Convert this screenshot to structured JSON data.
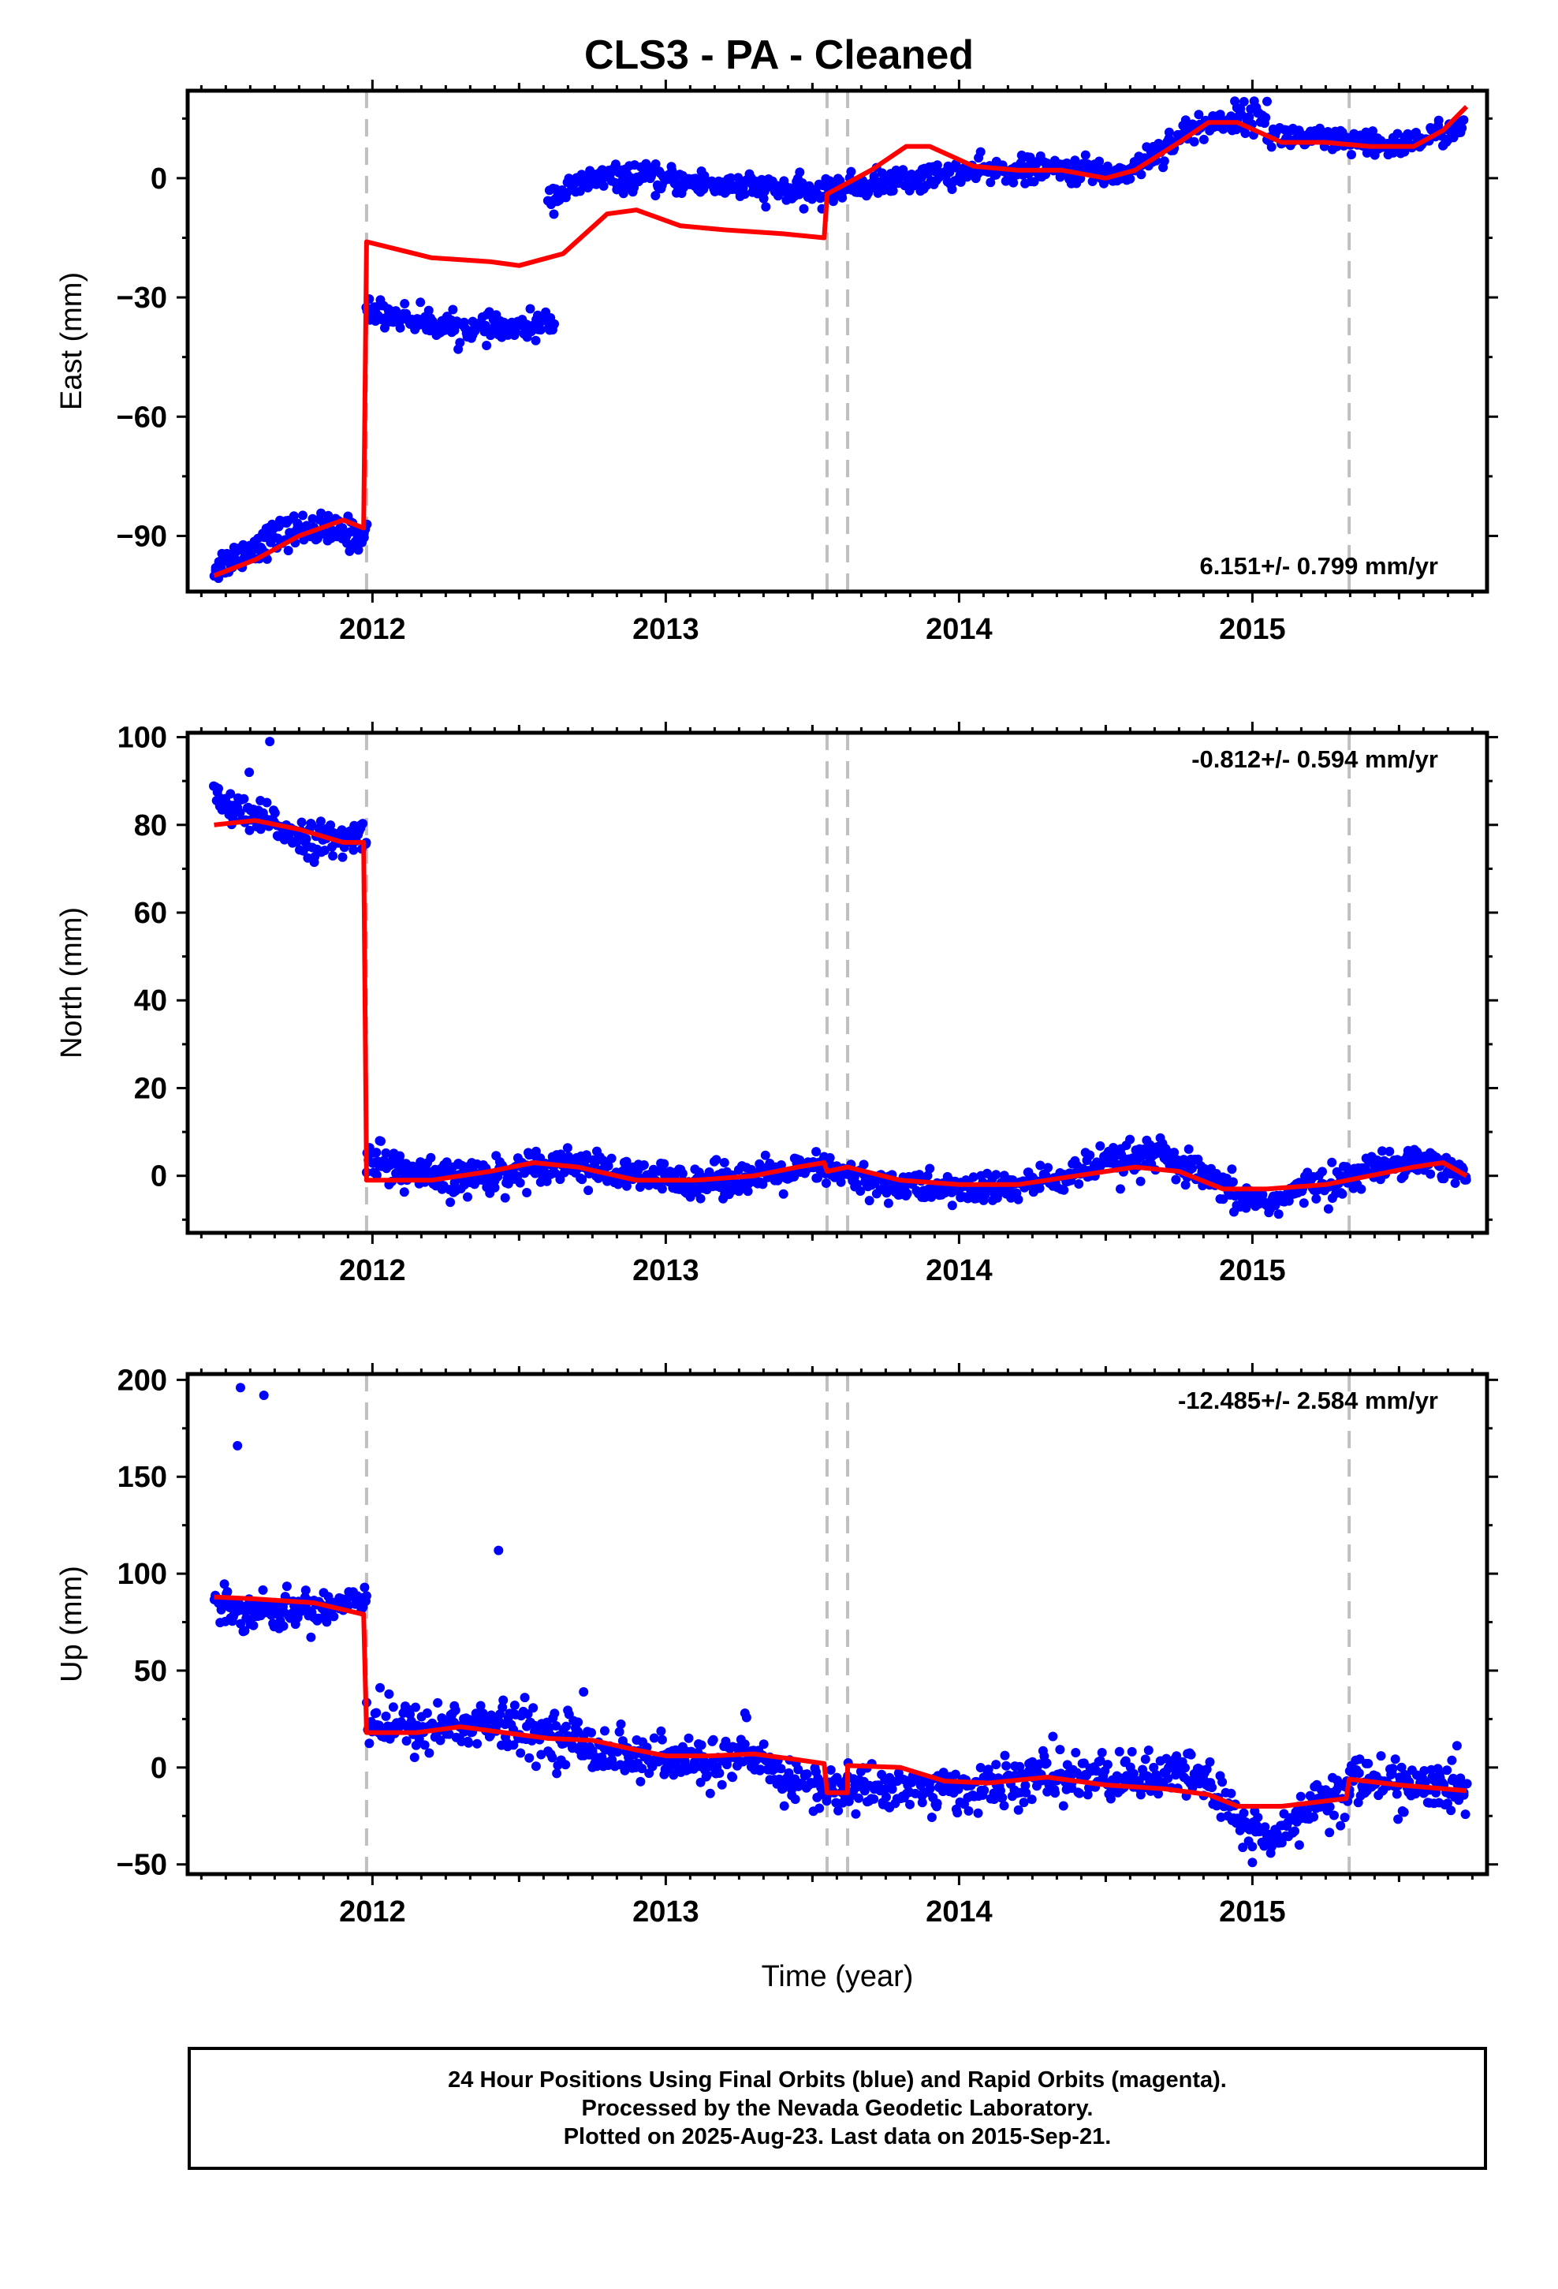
{
  "title": "CLS3  - PA - Cleaned",
  "colors": {
    "points": "#0000ff",
    "model": "#ff0000",
    "event_lines": "#c0c0c0",
    "axes": "#000000"
  },
  "footer": {
    "line1": "24 Hour Positions Using Final Orbits (blue) and Rapid Orbits (magenta).",
    "line2": "Processed by the Nevada Geodetic Laboratory.",
    "line3": "Plotted on 2025-Aug-23. Last data on 2015-Sep-21."
  },
  "chart_data": [
    {
      "type": "scatter",
      "ylabel": "East (mm)",
      "xlabel": "",
      "rate_label": "6.151+/- 0.799 mm/yr",
      "rate_position": "bottom-right",
      "xlim": [
        2011.37,
        2015.8
      ],
      "ylim": [
        -104,
        22
      ],
      "x_ticks": [
        2012,
        2013,
        2014,
        2015
      ],
      "y_ticks": [
        0,
        -30,
        -60,
        -90
      ],
      "event_lines": [
        2011.98,
        2013.55,
        2013.62,
        2015.33
      ],
      "series": [
        {
          "kind": "points",
          "segments": [
            {
              "x0": 2011.46,
              "x1": 2011.98,
              "y": [
                -98,
                -94,
                -90,
                -88,
                -89,
                -90
              ],
              "noise": 2.0,
              "n": 150
            },
            {
              "x0": 2011.98,
              "x1": 2012.62,
              "y": [
                -33,
                -35,
                -37,
                -38,
                -38,
                -36
              ],
              "noise": 1.6,
              "n": 170
            },
            {
              "x0": 2012.6,
              "x1": 2013.55,
              "y": [
                -5,
                0,
                0,
                -1,
                -2,
                -3,
                -4
              ],
              "noise": 1.6,
              "n": 260
            },
            {
              "x0": 2013.55,
              "x1": 2014.58,
              "y": [
                -3,
                -1,
                1,
                2,
                2,
                1
              ],
              "noise": 1.6,
              "n": 270
            },
            {
              "x0": 2014.58,
              "x1": 2015.05,
              "y": [
                2,
                8,
                13,
                15,
                16
              ],
              "noise": 1.8,
              "n": 120
            },
            {
              "x0": 2015.05,
              "x1": 2015.72,
              "y": [
                11,
                10,
                9,
                8,
                10,
                13
              ],
              "noise": 1.6,
              "n": 170
            }
          ],
          "outliers": []
        },
        {
          "kind": "model",
          "points": [
            [
              2011.46,
              -100
            ],
            [
              2011.6,
              -96
            ],
            [
              2011.75,
              -90
            ],
            [
              2011.9,
              -86
            ],
            [
              2011.97,
              -88
            ],
            [
              2011.98,
              -16
            ],
            [
              2012.2,
              -20
            ],
            [
              2012.4,
              -21
            ],
            [
              2012.5,
              -22
            ],
            [
              2012.65,
              -19
            ],
            [
              2012.8,
              -9
            ],
            [
              2012.9,
              -8
            ],
            [
              2013.05,
              -12
            ],
            [
              2013.2,
              -13
            ],
            [
              2013.4,
              -14
            ],
            [
              2013.54,
              -15
            ],
            [
              2013.55,
              -4
            ],
            [
              2013.7,
              2
            ],
            [
              2013.82,
              8
            ],
            [
              2013.9,
              8
            ],
            [
              2014.05,
              3
            ],
            [
              2014.2,
              2
            ],
            [
              2014.35,
              2
            ],
            [
              2014.5,
              0
            ],
            [
              2014.6,
              2
            ],
            [
              2014.75,
              9
            ],
            [
              2014.85,
              14
            ],
            [
              2014.95,
              14
            ],
            [
              2015.1,
              9
            ],
            [
              2015.25,
              9
            ],
            [
              2015.4,
              8
            ],
            [
              2015.55,
              8
            ],
            [
              2015.65,
              12
            ],
            [
              2015.73,
              18
            ]
          ]
        }
      ]
    },
    {
      "type": "scatter",
      "ylabel": "North (mm)",
      "xlabel": "",
      "rate_label": "-0.812+/- 0.594 mm/yr",
      "rate_position": "top-right",
      "xlim": [
        2011.37,
        2015.8
      ],
      "ylim": [
        -13,
        101
      ],
      "x_ticks": [
        2012,
        2013,
        2014,
        2015
      ],
      "y_ticks": [
        100,
        80,
        60,
        40,
        20,
        0
      ],
      "event_lines": [
        2011.98,
        2013.55,
        2013.62,
        2015.33
      ],
      "series": [
        {
          "kind": "points",
          "segments": [
            {
              "x0": 2011.46,
              "x1": 2011.98,
              "y": [
                86,
                82,
                80,
                77,
                76,
                78
              ],
              "noise": 2.0,
              "n": 140
            },
            {
              "x0": 2011.98,
              "x1": 2012.5,
              "y": [
                5,
                1,
                -1,
                0,
                1
              ],
              "noise": 2.0,
              "n": 160
            },
            {
              "x0": 2012.5,
              "x1": 2013.55,
              "y": [
                2,
                3,
                0,
                -1,
                -1,
                0,
                2
              ],
              "noise": 1.8,
              "n": 300
            },
            {
              "x0": 2013.55,
              "x1": 2014.7,
              "y": [
                1,
                -2,
                -3,
                -3,
                -1,
                3,
                5
              ],
              "noise": 1.8,
              "n": 300
            },
            {
              "x0": 2014.7,
              "x1": 2015.33,
              "y": [
                4,
                0,
                -5,
                -6,
                -2,
                -1
              ],
              "noise": 1.8,
              "n": 160
            },
            {
              "x0": 2015.33,
              "x1": 2015.73,
              "y": [
                0,
                2,
                4,
                3,
                0
              ],
              "noise": 1.6,
              "n": 110
            }
          ],
          "outliers": [
            [
              2011.58,
              92
            ],
            [
              2011.65,
              99
            ],
            [
              2013.2,
              3
            ],
            [
              2014.55,
              -3
            ]
          ]
        },
        {
          "kind": "model",
          "points": [
            [
              2011.46,
              80
            ],
            [
              2011.6,
              81
            ],
            [
              2011.75,
              79
            ],
            [
              2011.9,
              76
            ],
            [
              2011.97,
              76
            ],
            [
              2011.98,
              -1
            ],
            [
              2012.2,
              -1
            ],
            [
              2012.4,
              1
            ],
            [
              2012.55,
              3
            ],
            [
              2012.7,
              2
            ],
            [
              2012.9,
              -1
            ],
            [
              2013.1,
              -1
            ],
            [
              2013.3,
              0
            ],
            [
              2013.45,
              2
            ],
            [
              2013.54,
              3
            ],
            [
              2013.55,
              1
            ],
            [
              2013.62,
              2
            ],
            [
              2013.8,
              -1
            ],
            [
              2014.0,
              -2
            ],
            [
              2014.2,
              -2
            ],
            [
              2014.4,
              0
            ],
            [
              2014.6,
              2
            ],
            [
              2014.75,
              1
            ],
            [
              2014.9,
              -3
            ],
            [
              2015.05,
              -3
            ],
            [
              2015.25,
              -2
            ],
            [
              2015.4,
              0
            ],
            [
              2015.55,
              2
            ],
            [
              2015.65,
              3
            ],
            [
              2015.73,
              0
            ]
          ]
        }
      ]
    },
    {
      "type": "scatter",
      "ylabel": "Up (mm)",
      "xlabel": "Time (year)",
      "rate_label": "-12.485+/- 2.584 mm/yr",
      "rate_position": "top-right",
      "xlim": [
        2011.37,
        2015.8
      ],
      "ylim": [
        -55,
        203
      ],
      "x_ticks": [
        2012,
        2013,
        2014,
        2015
      ],
      "y_ticks": [
        200,
        150,
        100,
        50,
        0,
        -50
      ],
      "event_lines": [
        2011.98,
        2013.55,
        2013.62,
        2015.33
      ],
      "series": [
        {
          "kind": "points",
          "segments": [
            {
              "x0": 2011.46,
              "x1": 2011.98,
              "y": [
                84,
                82,
                80,
                82,
                84,
                90
              ],
              "noise": 4.5,
              "n": 150
            },
            {
              "x0": 2011.98,
              "x1": 2012.7,
              "y": [
                25,
                20,
                22,
                22,
                18,
                15
              ],
              "noise": 6.5,
              "n": 200
            },
            {
              "x0": 2012.7,
              "x1": 2013.55,
              "y": [
                12,
                8,
                3,
                3,
                5,
                -5,
                -12
              ],
              "noise": 6.0,
              "n": 230
            },
            {
              "x0": 2013.55,
              "x1": 2014.85,
              "y": [
                -12,
                -10,
                -12,
                -10,
                -5,
                -5,
                -5,
                -3
              ],
              "noise": 6.0,
              "n": 340
            },
            {
              "x0": 2014.85,
              "x1": 2015.33,
              "y": [
                -10,
                -30,
                -38,
                -15,
                -15
              ],
              "noise": 6.0,
              "n": 120
            },
            {
              "x0": 2015.33,
              "x1": 2015.73,
              "y": [
                -5,
                -8,
                -10,
                -12
              ],
              "noise": 6.0,
              "n": 110
            }
          ],
          "outliers": [
            [
              2011.55,
              196
            ],
            [
              2011.54,
              166
            ],
            [
              2011.63,
              192
            ],
            [
              2012.43,
              112
            ],
            [
              2012.72,
              39
            ],
            [
              2013.27,
              28
            ],
            [
              2014.32,
              16
            ],
            [
              2015.16,
              -40
            ],
            [
              2015.0,
              -49
            ]
          ]
        },
        {
          "kind": "model",
          "points": [
            [
              2011.46,
              88
            ],
            [
              2011.6,
              87
            ],
            [
              2011.8,
              85
            ],
            [
              2011.97,
              79
            ],
            [
              2011.98,
              18
            ],
            [
              2012.15,
              18
            ],
            [
              2012.3,
              21
            ],
            [
              2012.45,
              18
            ],
            [
              2012.6,
              15
            ],
            [
              2012.75,
              14
            ],
            [
              2012.9,
              9
            ],
            [
              2013.0,
              6
            ],
            [
              2013.15,
              6
            ],
            [
              2013.3,
              7
            ],
            [
              2013.45,
              4
            ],
            [
              2013.54,
              2
            ],
            [
              2013.55,
              -13
            ],
            [
              2013.62,
              -13
            ],
            [
              2013.62,
              1
            ],
            [
              2013.8,
              0
            ],
            [
              2013.95,
              -7
            ],
            [
              2014.1,
              -8
            ],
            [
              2014.3,
              -5
            ],
            [
              2014.5,
              -9
            ],
            [
              2014.7,
              -11
            ],
            [
              2014.85,
              -14
            ],
            [
              2014.95,
              -20
            ],
            [
              2015.1,
              -20
            ],
            [
              2015.32,
              -16
            ],
            [
              2015.33,
              -6
            ],
            [
              2015.5,
              -9
            ],
            [
              2015.73,
              -12
            ]
          ]
        }
      ]
    }
  ]
}
